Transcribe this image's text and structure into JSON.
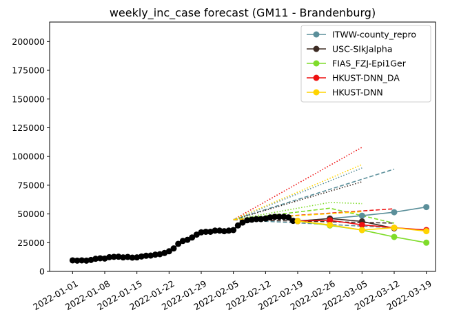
{
  "chart_data": {
    "type": "line",
    "title": "weekly_inc_case forecast (GM11 - Brandenburg)",
    "xlabel": "",
    "ylabel": "",
    "xlim": [
      "2021-12-27",
      "2022-03-21"
    ],
    "ylim": [
      0,
      217000
    ],
    "grid": false,
    "legend_position": "top-right",
    "x_ticks": [
      "2022-01-01",
      "2022-01-08",
      "2022-01-15",
      "2022-01-22",
      "2022-01-29",
      "2022-02-05",
      "2022-02-12",
      "2022-02-19",
      "2022-02-26",
      "2022-03-05",
      "2022-03-12",
      "2022-03-19"
    ],
    "y_ticks": [
      0,
      25000,
      50000,
      75000,
      100000,
      125000,
      150000,
      175000,
      200000
    ],
    "observed": {
      "color": "#000000",
      "x": [
        "2022-01-01",
        "2022-01-02",
        "2022-01-03",
        "2022-01-04",
        "2022-01-05",
        "2022-01-06",
        "2022-01-07",
        "2022-01-08",
        "2022-01-09",
        "2022-01-10",
        "2022-01-11",
        "2022-01-12",
        "2022-01-13",
        "2022-01-14",
        "2022-01-15",
        "2022-01-16",
        "2022-01-17",
        "2022-01-18",
        "2022-01-19",
        "2022-01-20",
        "2022-01-21",
        "2022-01-22",
        "2022-01-23",
        "2022-01-24",
        "2022-01-25",
        "2022-01-26",
        "2022-01-27",
        "2022-01-28",
        "2022-01-29",
        "2022-01-30",
        "2022-01-31",
        "2022-02-01",
        "2022-02-02",
        "2022-02-03",
        "2022-02-04",
        "2022-02-05",
        "2022-02-06",
        "2022-02-07",
        "2022-02-08",
        "2022-02-09",
        "2022-02-10",
        "2022-02-11",
        "2022-02-12",
        "2022-02-13",
        "2022-02-14",
        "2022-02-15",
        "2022-02-16",
        "2022-02-17",
        "2022-02-18",
        "2022-02-19"
      ],
      "y": [
        9600,
        9400,
        9600,
        9400,
        10000,
        11000,
        11400,
        11200,
        12400,
        12700,
        12800,
        12200,
        12600,
        12000,
        12200,
        13000,
        13600,
        13800,
        14600,
        15000,
        16000,
        17500,
        20000,
        24000,
        26500,
        27500,
        29500,
        32000,
        34000,
        34500,
        34500,
        35500,
        35500,
        35000,
        35500,
        36000,
        40000,
        42500,
        44500,
        45000,
        45500,
        45500,
        46000,
        47000,
        47500,
        47500,
        47500,
        47000,
        44000,
        43800
      ]
    },
    "series": [
      {
        "name": "ITWW-county_repro",
        "color": "#5b8f9a",
        "x": [
          "2022-02-19",
          "2022-02-26",
          "2022-03-05",
          "2022-03-12",
          "2022-03-19"
        ],
        "y": [
          43800,
          46000,
          48500,
          51500,
          56000
        ],
        "bands": [
          {
            "style": "dotted",
            "x": [
              "2022-02-05",
              "2022-03-05"
            ],
            "y": [
              45000,
              90000
            ]
          },
          {
            "style": "dashed",
            "x": [
              "2022-02-05",
              "2022-03-12"
            ],
            "y": [
              45000,
              89000
            ]
          },
          {
            "style": "dashed",
            "x": [
              "2022-02-05",
              "2022-03-12"
            ],
            "y": [
              45000,
              38000
            ]
          }
        ]
      },
      {
        "name": "USC-SIkJalpha",
        "color": "#3d2b24",
        "x": [
          "2022-02-19",
          "2022-02-26",
          "2022-03-05",
          "2022-03-12"
        ],
        "y": [
          43800,
          46000,
          43500,
          37500
        ],
        "bands": [
          {
            "style": "dotted",
            "x": [
              "2022-02-05",
              "2022-03-05"
            ],
            "y": [
              45000,
              78000
            ]
          },
          {
            "style": "dashed",
            "x": [
              "2022-02-05",
              "2022-03-12"
            ],
            "y": [
              45000,
              42000
            ]
          }
        ]
      },
      {
        "name": "FIAS_FZJ-Epi1Ger",
        "color": "#7fdc2a",
        "x": [
          "2022-02-19",
          "2022-02-26",
          "2022-03-05",
          "2022-03-12",
          "2022-03-19"
        ],
        "y": [
          43800,
          40000,
          36000,
          30000,
          25000
        ],
        "bands": [
          {
            "style": "dotted",
            "x": [
              "2022-02-05",
              "2022-02-26",
              "2022-03-05"
            ],
            "y": [
              45000,
              60000,
              59000
            ]
          },
          {
            "style": "dashed",
            "x": [
              "2022-02-05",
              "2022-02-26",
              "2022-03-12"
            ],
            "y": [
              45000,
              55000,
              42000
            ]
          }
        ]
      },
      {
        "name": "HKUST-DNN_DA",
        "color": "#ee1111",
        "x": [
          "2022-02-19",
          "2022-02-26",
          "2022-03-05",
          "2022-03-12",
          "2022-03-19"
        ],
        "y": [
          43800,
          44500,
          40500,
          38000,
          36000
        ],
        "bands": [
          {
            "style": "dotted",
            "x": [
              "2022-02-05",
              "2022-03-05"
            ],
            "y": [
              45000,
              108000
            ]
          },
          {
            "style": "dashed",
            "x": [
              "2022-02-05",
              "2022-03-12"
            ],
            "y": [
              45000,
              54500
            ]
          }
        ]
      },
      {
        "name": "HKUST-DNN",
        "color": "#ffd400",
        "x": [
          "2022-02-19",
          "2022-02-26",
          "2022-03-05",
          "2022-03-12",
          "2022-03-19"
        ],
        "y": [
          43800,
          40500,
          36000,
          38000,
          35000
        ],
        "bands": [
          {
            "style": "dotted",
            "x": [
              "2022-02-05",
              "2022-03-05"
            ],
            "y": [
              45000,
              93000
            ]
          },
          {
            "style": "dashed",
            "x": [
              "2022-02-05",
              "2022-03-05"
            ],
            "y": [
              45000,
              52000
            ]
          }
        ]
      }
    ]
  }
}
